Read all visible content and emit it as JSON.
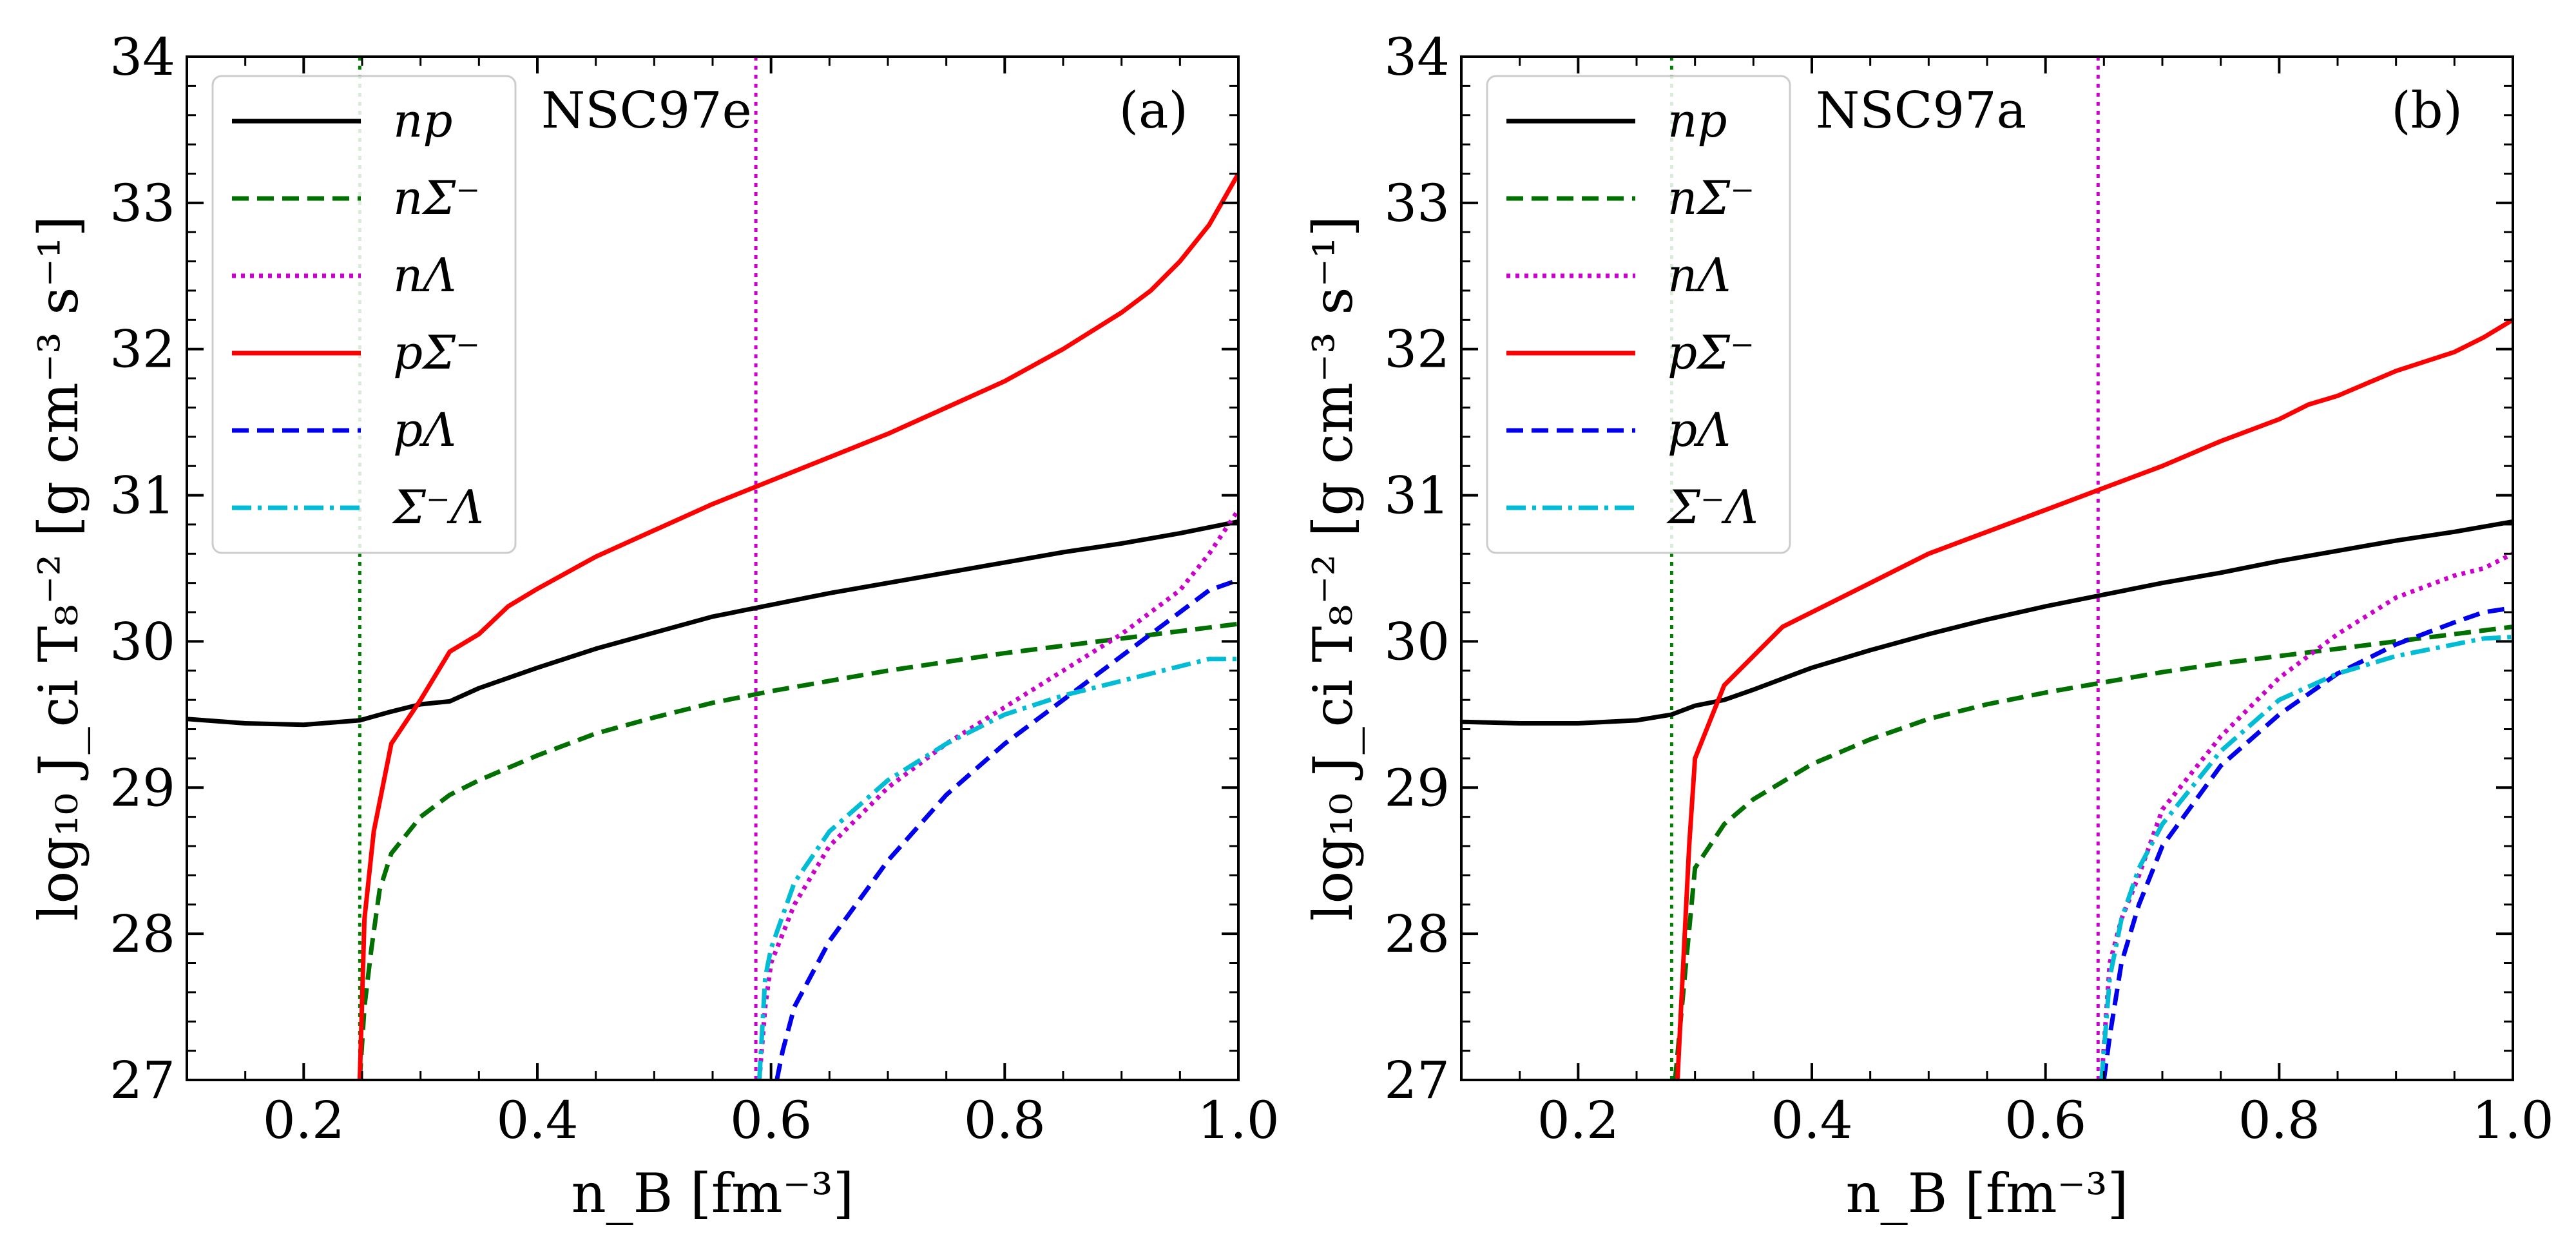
{
  "figure": {
    "y_axis_label": "log₁₀ J_ci T₈⁻² [g cm⁻³ s⁻¹]",
    "x_axis_label": "n_B [fm⁻³]"
  },
  "chart_data": [
    {
      "type": "line",
      "panel_label": "(a)",
      "model": "NSC97e",
      "xlabel": "n_B [fm⁻³]",
      "ylabel": "log₁₀ J_ci T₈⁻² [g cm⁻³ s⁻¹]",
      "xlim": [
        0.1,
        1.0
      ],
      "ylim": [
        27,
        34
      ],
      "x_ticks": [
        "0.2",
        "0.4",
        "0.6",
        "0.8",
        "1.0"
      ],
      "x_tick_values": [
        0.2,
        0.4,
        0.6,
        0.8,
        1.0
      ],
      "y_ticks": [
        "27",
        "28",
        "29",
        "30",
        "31",
        "32",
        "33",
        "34"
      ],
      "y_tick_values": [
        27,
        28,
        29,
        30,
        31,
        32,
        33,
        34
      ],
      "legend_position": "top-left",
      "thresholds": [
        {
          "name": "Σ⁻ threshold",
          "x": 0.248,
          "color": "#008000",
          "style": "dotted"
        },
        {
          "name": "Λ threshold",
          "x": 0.587,
          "color": "#cc00cc",
          "style": "dotted"
        }
      ],
      "series": [
        {
          "name": "np",
          "color": "#000000",
          "style": "solid",
          "x": [
            0.1,
            0.15,
            0.2,
            0.248,
            0.275,
            0.3,
            0.325,
            0.35,
            0.4,
            0.45,
            0.5,
            0.55,
            0.6,
            0.65,
            0.7,
            0.75,
            0.8,
            0.85,
            0.9,
            0.95,
            1.0
          ],
          "y": [
            29.47,
            29.44,
            29.43,
            29.46,
            29.52,
            29.57,
            29.59,
            29.68,
            29.82,
            29.95,
            30.06,
            30.17,
            30.25,
            30.33,
            30.4,
            30.47,
            30.54,
            30.61,
            30.67,
            30.74,
            30.82
          ]
        },
        {
          "name": "nΣ⁻",
          "color": "#007000",
          "style": "dashed",
          "x": [
            0.248,
            0.252,
            0.258,
            0.265,
            0.275,
            0.3,
            0.325,
            0.35,
            0.4,
            0.45,
            0.5,
            0.55,
            0.6,
            0.65,
            0.7,
            0.75,
            0.8,
            0.85,
            0.9,
            0.95,
            1.0
          ],
          "y": [
            27.0,
            27.5,
            27.9,
            28.3,
            28.55,
            28.8,
            28.95,
            29.05,
            29.22,
            29.37,
            29.48,
            29.58,
            29.66,
            29.73,
            29.8,
            29.86,
            29.92,
            29.97,
            30.02,
            30.07,
            30.12
          ]
        },
        {
          "name": "nΛ",
          "color": "#cc00cc",
          "style": "dotted",
          "x": [
            0.59,
            0.595,
            0.6,
            0.62,
            0.65,
            0.7,
            0.75,
            0.8,
            0.85,
            0.9,
            0.95,
            0.975,
            1.0
          ],
          "y": [
            27.0,
            27.5,
            27.8,
            28.2,
            28.6,
            29.0,
            29.3,
            29.55,
            29.8,
            30.05,
            30.35,
            30.6,
            30.9
          ]
        },
        {
          "name": "pΣ⁻",
          "color": "#ff0000",
          "style": "solid",
          "x": [
            0.248,
            0.252,
            0.26,
            0.275,
            0.3,
            0.325,
            0.35,
            0.375,
            0.4,
            0.45,
            0.5,
            0.55,
            0.6,
            0.65,
            0.7,
            0.75,
            0.8,
            0.85,
            0.9,
            0.925,
            0.95,
            0.975,
            1.0
          ],
          "y": [
            27.0,
            28.1,
            28.7,
            29.3,
            29.6,
            29.93,
            30.05,
            30.24,
            30.36,
            30.58,
            30.76,
            30.94,
            31.1,
            31.26,
            31.42,
            31.6,
            31.78,
            32.0,
            32.25,
            32.4,
            32.6,
            32.85,
            33.2
          ]
        },
        {
          "name": "pΛ",
          "color": "#0000ee",
          "style": "dashed",
          "x": [
            0.605,
            0.61,
            0.62,
            0.65,
            0.7,
            0.75,
            0.8,
            0.85,
            0.9,
            0.95,
            0.975,
            1.0
          ],
          "y": [
            27.0,
            27.2,
            27.5,
            27.95,
            28.5,
            28.95,
            29.3,
            29.6,
            29.9,
            30.2,
            30.35,
            30.42
          ]
        },
        {
          "name": "Σ⁻Λ",
          "color": "#00bcd4",
          "style": "dashdot",
          "x": [
            0.59,
            0.595,
            0.6,
            0.62,
            0.65,
            0.7,
            0.75,
            0.8,
            0.85,
            0.9,
            0.95,
            0.975,
            1.0
          ],
          "y": [
            27.0,
            27.7,
            27.9,
            28.35,
            28.7,
            29.05,
            29.3,
            29.5,
            29.63,
            29.73,
            29.83,
            29.88,
            29.88
          ]
        }
      ]
    },
    {
      "type": "line",
      "panel_label": "(b)",
      "model": "NSC97a",
      "xlabel": "n_B [fm⁻³]",
      "ylabel": "log₁₀ J_ci T₈⁻² [g cm⁻³ s⁻¹]",
      "xlim": [
        0.1,
        1.0
      ],
      "ylim": [
        27,
        34
      ],
      "x_ticks": [
        "0.2",
        "0.4",
        "0.6",
        "0.8",
        "1.0"
      ],
      "x_tick_values": [
        0.2,
        0.4,
        0.6,
        0.8,
        1.0
      ],
      "y_ticks": [
        "27",
        "28",
        "29",
        "30",
        "31",
        "32",
        "33",
        "34"
      ],
      "y_tick_values": [
        27,
        28,
        29,
        30,
        31,
        32,
        33,
        34
      ],
      "legend_position": "top-left",
      "thresholds": [
        {
          "name": "Σ⁻ threshold",
          "x": 0.28,
          "color": "#008000",
          "style": "dotted"
        },
        {
          "name": "Λ threshold",
          "x": 0.645,
          "color": "#cc00cc",
          "style": "dotted"
        }
      ],
      "series": [
        {
          "name": "np",
          "color": "#000000",
          "style": "solid",
          "x": [
            0.1,
            0.15,
            0.2,
            0.25,
            0.28,
            0.3,
            0.325,
            0.35,
            0.4,
            0.45,
            0.5,
            0.55,
            0.6,
            0.65,
            0.7,
            0.75,
            0.8,
            0.85,
            0.9,
            0.95,
            1.0
          ],
          "y": [
            29.45,
            29.44,
            29.44,
            29.46,
            29.5,
            29.56,
            29.6,
            29.67,
            29.82,
            29.94,
            30.05,
            30.15,
            30.24,
            30.32,
            30.4,
            30.47,
            30.55,
            30.62,
            30.69,
            30.75,
            30.82
          ]
        },
        {
          "name": "nΣ⁻",
          "color": "#007000",
          "style": "dashed",
          "x": [
            0.283,
            0.29,
            0.3,
            0.325,
            0.35,
            0.4,
            0.45,
            0.5,
            0.55,
            0.6,
            0.65,
            0.7,
            0.75,
            0.8,
            0.85,
            0.9,
            0.95,
            1.0
          ],
          "y": [
            27.0,
            27.6,
            28.45,
            28.75,
            28.92,
            29.16,
            29.33,
            29.47,
            29.57,
            29.65,
            29.72,
            29.79,
            29.85,
            29.9,
            29.95,
            30.0,
            30.05,
            30.1
          ]
        },
        {
          "name": "nΛ",
          "color": "#cc00cc",
          "style": "dotted",
          "x": [
            0.648,
            0.655,
            0.665,
            0.68,
            0.7,
            0.75,
            0.8,
            0.85,
            0.9,
            0.95,
            0.975,
            1.0
          ],
          "y": [
            27.0,
            27.8,
            28.1,
            28.4,
            28.85,
            29.35,
            29.75,
            30.05,
            30.3,
            30.45,
            30.5,
            30.6
          ]
        },
        {
          "name": "pΣ⁻",
          "color": "#ff0000",
          "style": "solid",
          "x": [
            0.285,
            0.29,
            0.295,
            0.3,
            0.325,
            0.35,
            0.375,
            0.4,
            0.45,
            0.5,
            0.55,
            0.6,
            0.65,
            0.7,
            0.75,
            0.8,
            0.825,
            0.85,
            0.9,
            0.95,
            0.975,
            1.0
          ],
          "y": [
            27.0,
            27.8,
            28.6,
            29.2,
            29.7,
            29.9,
            30.1,
            30.2,
            30.4,
            30.6,
            30.75,
            30.9,
            31.05,
            31.2,
            31.37,
            31.52,
            31.62,
            31.68,
            31.85,
            31.98,
            32.08,
            32.2
          ]
        },
        {
          "name": "pΛ",
          "color": "#0000ee",
          "style": "dashed",
          "x": [
            0.65,
            0.655,
            0.665,
            0.68,
            0.7,
            0.75,
            0.8,
            0.85,
            0.9,
            0.95,
            0.975,
            1.0
          ],
          "y": [
            27.0,
            27.3,
            27.8,
            28.2,
            28.6,
            29.15,
            29.5,
            29.78,
            29.98,
            30.13,
            30.2,
            30.23
          ]
        },
        {
          "name": "Σ⁻Λ",
          "color": "#00bcd4",
          "style": "dashdot",
          "x": [
            0.648,
            0.655,
            0.665,
            0.68,
            0.7,
            0.75,
            0.8,
            0.85,
            0.9,
            0.95,
            0.975,
            1.0
          ],
          "y": [
            27.0,
            27.7,
            28.1,
            28.45,
            28.75,
            29.25,
            29.6,
            29.78,
            29.9,
            29.98,
            30.02,
            30.03
          ]
        }
      ]
    }
  ]
}
